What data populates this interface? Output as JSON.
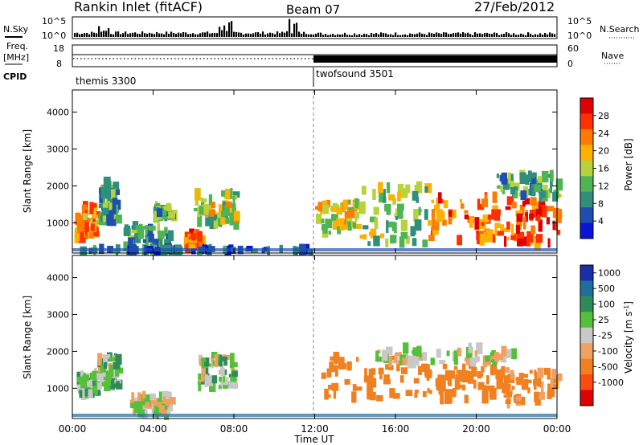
{
  "header": {
    "station": "Rankin Inlet (fitACF)",
    "beam": "Beam 07",
    "date": "27/Feb/2012"
  },
  "side_labels": {
    "nsky": "N.Sky",
    "nsearch": "N.Search",
    "freq": "Freq.",
    "freq_unit": "[MHz]",
    "nave": "Nave",
    "cpid": "CPID"
  },
  "noise_panel": {
    "left_ticks": [
      "10^5",
      "10^0"
    ],
    "right_ticks": [
      "10^5",
      "10^0"
    ]
  },
  "freq_panel": {
    "left_ticks": [
      "18",
      "8"
    ],
    "right_ticks": [
      "60",
      "0"
    ]
  },
  "cpid_panel": {
    "modes": [
      "themis 3300",
      "twofsound 3501"
    ],
    "switch_time_h": 12
  },
  "colors": {
    "power": [
      "#0a14d8",
      "#1e4fb0",
      "#2f8f7a",
      "#4fb454",
      "#b8d23c",
      "#ffb000",
      "#ff7a00",
      "#ff3000",
      "#e00000"
    ],
    "velocity": [
      "#1a2ea8",
      "#1f6e9c",
      "#2e8b57",
      "#54c03a",
      "#c8c8c8",
      "#f0a060",
      "#f08020",
      "#ff4a10",
      "#e00000"
    ]
  },
  "chart_data": [
    {
      "type": "heatmap",
      "title": "",
      "ylabel": "Slant Range [km]",
      "xlabel": "",
      "xlim": [
        "00:00",
        "00:00"
      ],
      "ylim": [
        180,
        4600
      ],
      "yticks": [
        1000,
        2000,
        3000,
        4000
      ],
      "colorbar": {
        "label": "Power [dB]",
        "ticks": [
          4,
          8,
          12,
          16,
          20,
          24,
          28
        ],
        "range": [
          0,
          32
        ]
      },
      "regions": [
        {
          "t0": 0.1,
          "t1": 1.3,
          "r0": 600,
          "r1": 1500,
          "value": 22
        },
        {
          "t0": 1.3,
          "t1": 2.2,
          "r0": 1000,
          "r1": 2100,
          "value": 10
        },
        {
          "t0": 2.5,
          "t1": 4.8,
          "r0": 250,
          "r1": 900,
          "value": 10
        },
        {
          "t0": 4.0,
          "t1": 4.9,
          "r0": 1150,
          "r1": 1450,
          "value": 12
        },
        {
          "t0": 5.5,
          "t1": 6.3,
          "r0": 300,
          "r1": 700,
          "value": 24
        },
        {
          "t0": 6.0,
          "t1": 8.0,
          "r0": 900,
          "r1": 1800,
          "value": 16
        },
        {
          "t0": 0.0,
          "t1": 12.0,
          "r0": 200,
          "r1": 300,
          "value": 6
        },
        {
          "t0": 12.0,
          "t1": 14.2,
          "r0": 700,
          "r1": 1600,
          "value": 18
        },
        {
          "t0": 14.2,
          "t1": 17.5,
          "r0": 400,
          "r1": 2000,
          "value": 14
        },
        {
          "t0": 17.5,
          "t1": 21.0,
          "r0": 500,
          "r1": 1700,
          "value": 24
        },
        {
          "t0": 21.0,
          "t1": 24.0,
          "r0": 400,
          "r1": 1600,
          "value": 26
        },
        {
          "t0": 21.0,
          "t1": 24.0,
          "r0": 1700,
          "r1": 2300,
          "value": 12
        }
      ]
    },
    {
      "type": "heatmap",
      "title": "",
      "ylabel": "Slant Range [km]",
      "xlabel": "Time UT",
      "xticks": [
        "00:00",
        "04:00",
        "08:00",
        "12:00",
        "16:00",
        "20:00",
        "00:00"
      ],
      "ylim": [
        180,
        4600
      ],
      "yticks": [
        1000,
        2000,
        3000,
        4000
      ],
      "colorbar": {
        "label": "Velocity [m s^-1]",
        "ticks": [
          1000,
          500,
          100,
          25,
          -25,
          -100,
          -500,
          -1000
        ]
      },
      "regions": [
        {
          "t0": 0.2,
          "t1": 1.2,
          "r0": 800,
          "r1": 1400,
          "value": 80
        },
        {
          "t0": 1.2,
          "t1": 2.2,
          "r0": 1000,
          "r1": 1900,
          "value": 60
        },
        {
          "t0": 2.8,
          "t1": 4.8,
          "r0": 300,
          "r1": 800,
          "value": 0
        },
        {
          "t0": 6.2,
          "t1": 8.0,
          "r0": 1000,
          "r1": 1900,
          "value": 30
        },
        {
          "t0": 12.2,
          "t1": 17.5,
          "r0": 700,
          "r1": 1900,
          "value": -300
        },
        {
          "t0": 17.5,
          "t1": 21.0,
          "r0": 700,
          "r1": 1600,
          "value": -200
        },
        {
          "t0": 21.0,
          "t1": 24.0,
          "r0": 600,
          "r1": 1500,
          "value": -150
        },
        {
          "t0": 15.0,
          "t1": 22.0,
          "r0": 1700,
          "r1": 2100,
          "value": 0
        }
      ]
    }
  ]
}
